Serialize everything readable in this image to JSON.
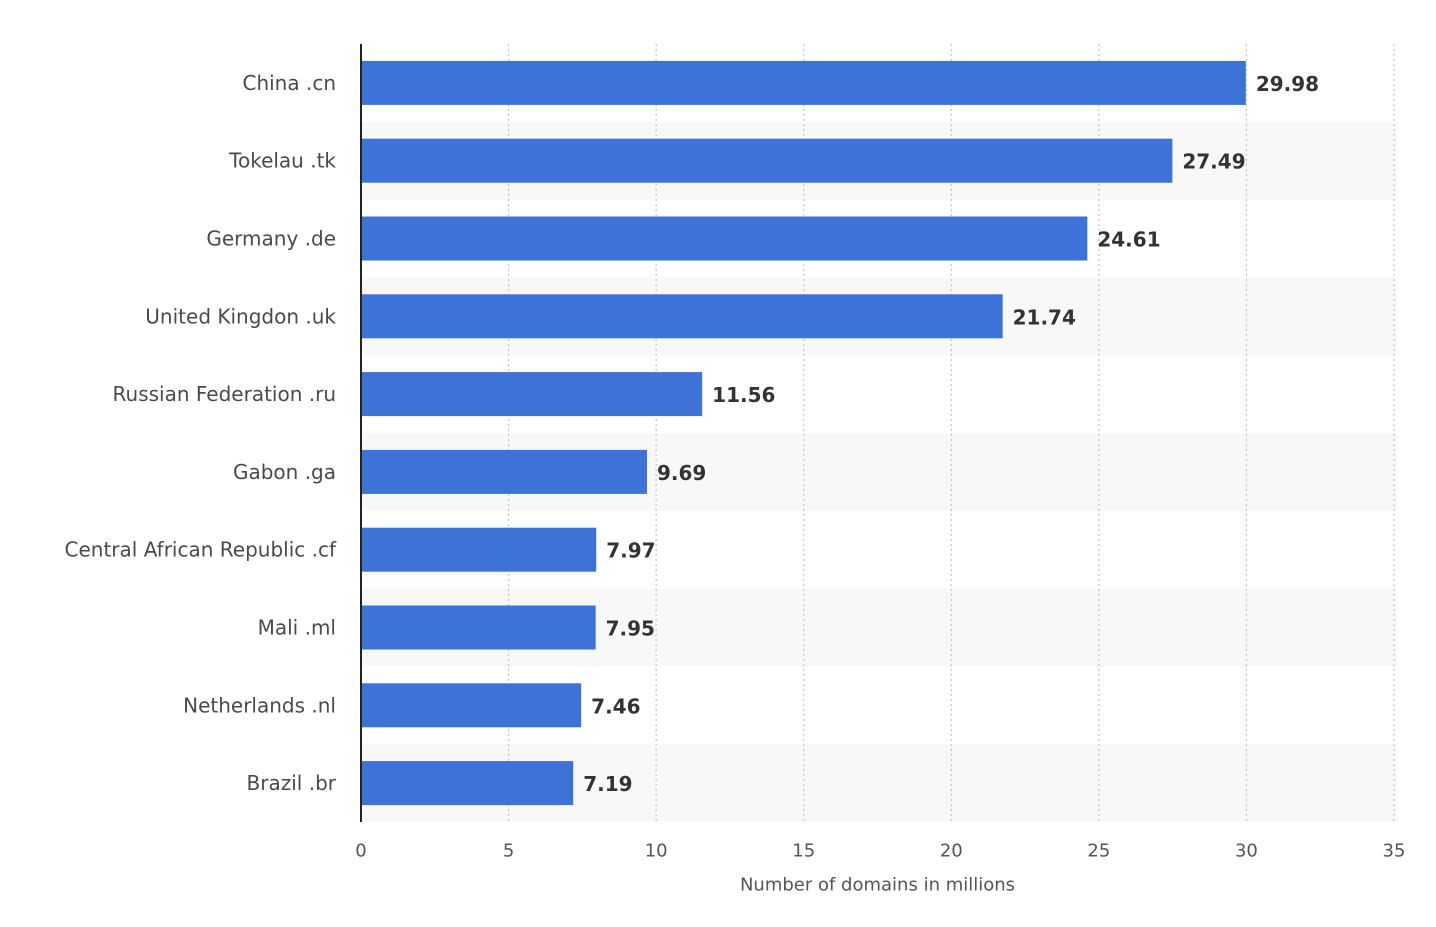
{
  "chart_data": {
    "type": "bar",
    "orientation": "horizontal",
    "title": "",
    "xlabel": "Number of domains in millions",
    "ylabel": "",
    "categories": [
      "China .cn",
      "Tokelau .tk",
      "Germany .de",
      "United Kingdon .uk",
      "Russian Federation .ru",
      "Gabon .ga",
      "Central African Republic .cf",
      "Mali .ml",
      "Netherlands .nl",
      "Brazil .br"
    ],
    "values": [
      29.98,
      27.49,
      24.61,
      21.74,
      11.56,
      9.69,
      7.97,
      7.95,
      7.46,
      7.19
    ],
    "value_labels": [
      "29.98",
      "27.49",
      "24.61",
      "21.74",
      "11.56",
      "9.69",
      "7.97",
      "7.95",
      "7.46",
      "7.19"
    ],
    "xlim": [
      0,
      35
    ],
    "xticks": [
      0,
      5,
      10,
      15,
      20,
      25,
      30,
      35
    ],
    "grid": true,
    "legend": "none",
    "bar_color": "#3d72d7",
    "band_color": "#f8f8f8",
    "grid_color": "#c4c4c4"
  }
}
